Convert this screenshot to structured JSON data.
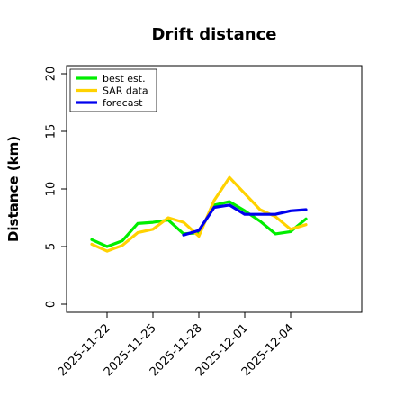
{
  "chart_data": {
    "type": "line",
    "title": "Drift distance",
    "xlabel": "",
    "ylabel": "Distance (km)",
    "ylim": [
      0,
      20
    ],
    "yticks": [
      0,
      5,
      10,
      15,
      20
    ],
    "xlim": [
      "2025-11-20",
      "2025-12-07"
    ],
    "xticks": [
      "2025-11-22",
      "2025-11-25",
      "2025-11-28",
      "2025-12-01",
      "2025-12-04"
    ],
    "grid": false,
    "legend_position": "top-left",
    "series": [
      {
        "name": "best est.",
        "color": "#00ee00",
        "points": [
          {
            "x": "2025-11-21",
            "y": 5.6
          },
          {
            "x": "2025-11-22",
            "y": 5.0
          },
          {
            "x": "2025-11-23",
            "y": 5.5
          },
          {
            "x": "2025-11-24",
            "y": 7.0
          },
          {
            "x": "2025-11-25",
            "y": 7.1
          },
          {
            "x": "2025-11-26",
            "y": 7.3
          },
          {
            "x": "2025-11-27",
            "y": 6.1
          },
          {
            "x": "2025-11-28",
            "y": 6.2
          },
          {
            "x": "2025-11-29",
            "y": 8.6
          },
          {
            "x": "2025-11-30",
            "y": 8.9
          },
          {
            "x": "2025-12-01",
            "y": 8.1
          },
          {
            "x": "2025-12-02",
            "y": 7.2
          },
          {
            "x": "2025-12-03",
            "y": 6.1
          },
          {
            "x": "2025-12-04",
            "y": 6.3
          },
          {
            "x": "2025-12-05",
            "y": 7.4
          }
        ]
      },
      {
        "name": "SAR data",
        "color": "#ffd200",
        "points": [
          {
            "x": "2025-11-21",
            "y": 5.2
          },
          {
            "x": "2025-11-22",
            "y": 4.6
          },
          {
            "x": "2025-11-23",
            "y": 5.1
          },
          {
            "x": "2025-11-24",
            "y": 6.2
          },
          {
            "x": "2025-11-25",
            "y": 6.5
          },
          {
            "x": "2025-11-26",
            "y": 7.5
          },
          {
            "x": "2025-11-27",
            "y": 7.1
          },
          {
            "x": "2025-11-28",
            "y": 5.9
          },
          {
            "x": "2025-11-29",
            "y": 9.0
          },
          {
            "x": "2025-11-30",
            "y": 11.0
          },
          {
            "x": "2025-12-01",
            "y": 9.6
          },
          {
            "x": "2025-12-02",
            "y": 8.2
          },
          {
            "x": "2025-12-03",
            "y": 7.6
          },
          {
            "x": "2025-12-04",
            "y": 6.5
          },
          {
            "x": "2025-12-05",
            "y": 6.9
          }
        ]
      },
      {
        "name": "forecast",
        "color": "#0000ee",
        "points": [
          {
            "x": "2025-11-27",
            "y": 6.0
          },
          {
            "x": "2025-11-28",
            "y": 6.4
          },
          {
            "x": "2025-11-29",
            "y": 8.4
          },
          {
            "x": "2025-11-30",
            "y": 8.6
          },
          {
            "x": "2025-12-01",
            "y": 7.8
          },
          {
            "x": "2025-12-02",
            "y": 7.8
          },
          {
            "x": "2025-12-03",
            "y": 7.8
          },
          {
            "x": "2025-12-04",
            "y": 8.1
          },
          {
            "x": "2025-12-05",
            "y": 8.2
          }
        ]
      }
    ]
  }
}
